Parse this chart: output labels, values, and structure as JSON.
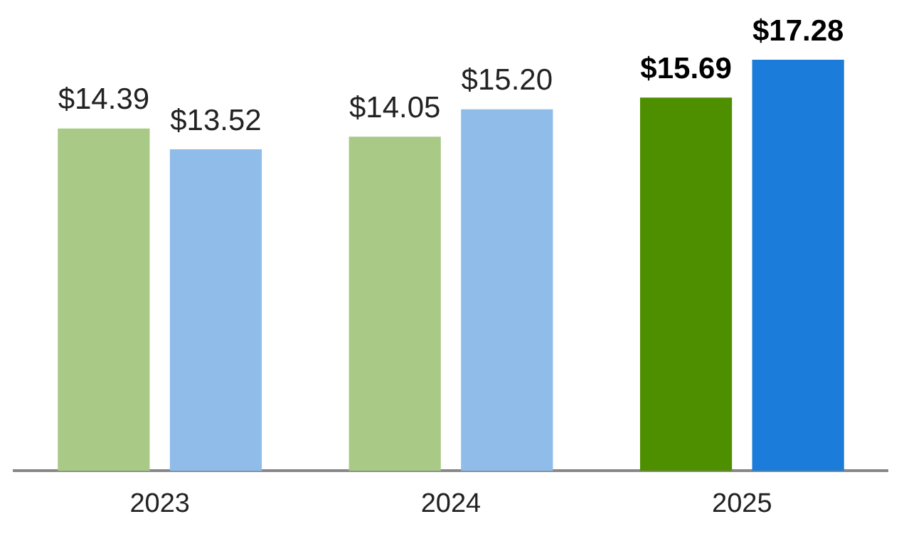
{
  "chart_data": {
    "type": "bar",
    "categories": [
      "2023",
      "2024",
      "2025"
    ],
    "series": [
      {
        "colors": [
          "#a9c987",
          "#a9c987",
          "#4e8f00"
        ],
        "values": [
          14.39,
          14.05,
          15.69
        ],
        "value_labels": [
          "$14.39",
          "$14.05",
          "$15.69"
        ]
      },
      {
        "colors": [
          "#8fbce9",
          "#8fbce9",
          "#1b7cd9"
        ],
        "values": [
          13.52,
          15.2,
          17.28
        ],
        "value_labels": [
          "$13.52",
          "$15.20",
          "$17.28"
        ]
      }
    ],
    "grid": false,
    "legend": false
  }
}
